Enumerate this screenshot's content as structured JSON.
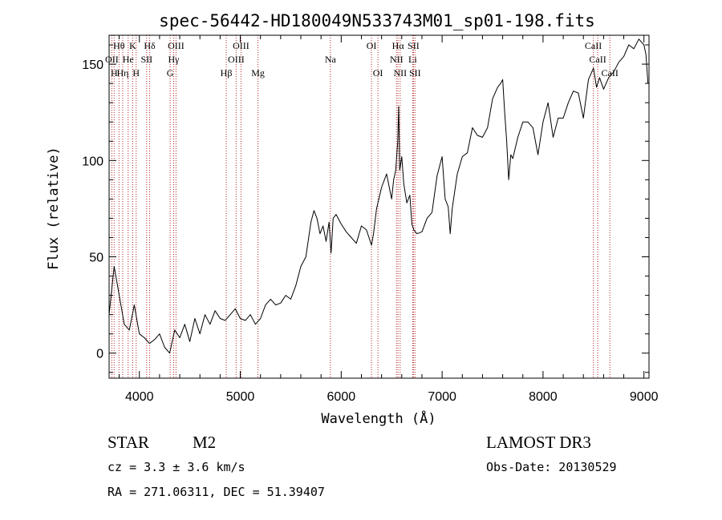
{
  "chart_data": {
    "type": "line",
    "title": "spec-56442-HD180049N533743M01_sp01-198.fits",
    "xlabel": "Wavelength (Å)",
    "ylabel": "Flux (relative)",
    "xlim": [
      3700,
      9050
    ],
    "ylim": [
      -13,
      165
    ],
    "x_ticks": [
      4000,
      5000,
      6000,
      7000,
      8000,
      9000
    ],
    "y_ticks": [
      0,
      50,
      100,
      150
    ],
    "x_tick_labels": [
      "4000",
      "5000",
      "6000",
      "7000",
      "8000",
      "9000"
    ],
    "y_tick_labels": [
      "0",
      "50",
      "100",
      "150"
    ],
    "grid": false,
    "series": [
      {
        "color": "#000000",
        "x": [
          3700,
          3750,
          3800,
          3850,
          3900,
          3950,
          4000,
          4050,
          4100,
          4150,
          4200,
          4250,
          4300,
          4350,
          4400,
          4450,
          4500,
          4550,
          4600,
          4650,
          4700,
          4750,
          4800,
          4850,
          4900,
          4950,
          5000,
          5050,
          5100,
          5150,
          5200,
          5250,
          5300,
          5350,
          5400,
          5450,
          5500,
          5550,
          5600,
          5650,
          5700,
          5730,
          5760,
          5790,
          5820,
          5850,
          5880,
          5900,
          5920,
          5950,
          6000,
          6050,
          6100,
          6150,
          6200,
          6250,
          6300,
          6320,
          6350,
          6400,
          6450,
          6500,
          6520,
          6540,
          6560,
          6570,
          6580,
          6600,
          6620,
          6650,
          6680,
          6700,
          6720,
          6750,
          6800,
          6850,
          6900,
          6950,
          7000,
          7030,
          7060,
          7080,
          7100,
          7150,
          7200,
          7250,
          7300,
          7350,
          7400,
          7450,
          7500,
          7550,
          7580,
          7600,
          7620,
          7640,
          7660,
          7680,
          7700,
          7750,
          7800,
          7850,
          7900,
          7950,
          8000,
          8050,
          8100,
          8150,
          8200,
          8250,
          8300,
          8350,
          8400,
          8450,
          8500,
          8530,
          8560,
          8600,
          8650,
          8700,
          8750,
          8800,
          8850,
          8900,
          8950,
          9000,
          9020,
          9040
        ],
        "y": [
          20,
          45,
          30,
          15,
          12,
          25,
          10,
          8,
          5,
          7,
          10,
          3,
          0,
          12,
          8,
          15,
          6,
          18,
          10,
          20,
          15,
          22,
          18,
          17,
          20,
          23,
          18,
          17,
          20,
          15,
          18,
          25,
          28,
          25,
          26,
          30,
          28,
          35,
          45,
          50,
          68,
          74,
          70,
          62,
          66,
          58,
          68,
          52,
          70,
          72,
          67,
          63,
          60,
          57,
          66,
          64,
          56,
          62,
          75,
          86,
          93,
          80,
          90,
          95,
          110,
          128,
          95,
          102,
          88,
          78,
          82,
          67,
          64,
          62,
          63,
          70,
          73,
          92,
          102,
          80,
          76,
          62,
          75,
          93,
          102,
          104,
          117,
          113,
          112,
          117,
          132,
          138,
          140,
          142,
          125,
          110,
          90,
          103,
          101,
          112,
          120,
          120,
          117,
          103,
          120,
          130,
          112,
          122,
          122,
          130,
          136,
          135,
          122,
          142,
          148,
          138,
          143,
          137,
          143,
          146,
          151,
          154,
          160,
          158,
          163,
          160,
          155,
          140
        ]
      }
    ],
    "line_labels": [
      {
        "text": "Hθ",
        "x": 3798,
        "row": 1
      },
      {
        "text": "K",
        "x": 3934,
        "row": 1
      },
      {
        "text": "Hδ",
        "x": 4102,
        "row": 1
      },
      {
        "text": "OIII",
        "x": 4363,
        "row": 1
      },
      {
        "text": "OIII",
        "x": 5007,
        "row": 1
      },
      {
        "text": "OI",
        "x": 6300,
        "row": 1
      },
      {
        "text": "Hα",
        "x": 6563,
        "row": 1
      },
      {
        "text": "SII",
        "x": 6716,
        "row": 1
      },
      {
        "text": "CaII",
        "x": 8498,
        "row": 1
      },
      {
        "text": "OII",
        "x": 3727,
        "row": 2
      },
      {
        "text": "He",
        "x": 3889,
        "row": 2
      },
      {
        "text": "SII",
        "x": 4072,
        "row": 2
      },
      {
        "text": "Hγ",
        "x": 4340,
        "row": 2
      },
      {
        "text": "OIII",
        "x": 4959,
        "row": 2
      },
      {
        "text": "Na",
        "x": 5893,
        "row": 2
      },
      {
        "text": "NII",
        "x": 6548,
        "row": 2
      },
      {
        "text": "Li",
        "x": 6708,
        "row": 2
      },
      {
        "text": "CaII",
        "x": 8542,
        "row": 2
      },
      {
        "text": "H",
        "x": 3750,
        "row": 3
      },
      {
        "text": "Hη",
        "x": 3835,
        "row": 3
      },
      {
        "text": "H",
        "x": 3968,
        "row": 3
      },
      {
        "text": "G",
        "x": 4305,
        "row": 3
      },
      {
        "text": "Hβ",
        "x": 4861,
        "row": 3
      },
      {
        "text": "Mg",
        "x": 5175,
        "row": 3
      },
      {
        "text": "OI",
        "x": 6364,
        "row": 3
      },
      {
        "text": "NII",
        "x": 6584,
        "row": 3
      },
      {
        "text": "SII",
        "x": 6731,
        "row": 3
      },
      {
        "text": "CaII",
        "x": 8662,
        "row": 3
      }
    ],
    "line_marker_x": [
      3727,
      3750,
      3798,
      3835,
      3889,
      3934,
      3968,
      4072,
      4102,
      4305,
      4340,
      4363,
      4861,
      4959,
      5007,
      5175,
      5893,
      6300,
      6364,
      6548,
      6563,
      6584,
      6708,
      6716,
      6731,
      8498,
      8542,
      8662
    ],
    "line_marker_color": "#b22222"
  },
  "info": {
    "class": "STAR",
    "subclass": "M2",
    "cz": "cz = 3.3 ± 3.6 km/s",
    "radec": "RA = 271.06311, DEC =  51.39407",
    "survey": "LAMOST DR3",
    "obsdate": "Obs-Date: 20130529"
  }
}
